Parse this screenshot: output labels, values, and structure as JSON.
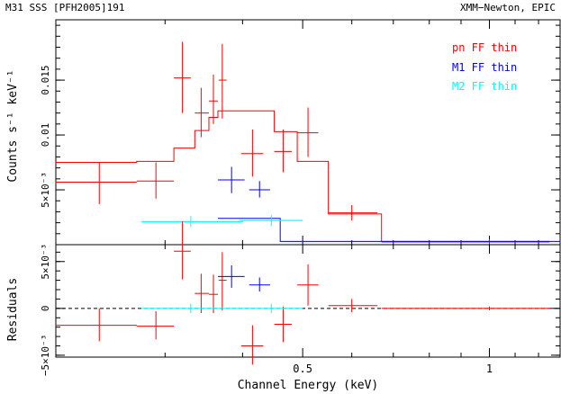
{
  "header": {
    "left": "M31 SSS [PFH2005]191",
    "right": "XMM−Newton, EPIC"
  },
  "colors": {
    "pn": "#ff0000",
    "m1": "#0000ff",
    "m2": "#00ffff",
    "axes": "#000000"
  },
  "chart_data": [
    {
      "type": "scatter",
      "panel": "spectrum",
      "ylabel": "Counts s⁻¹ keV⁻¹",
      "xscale": "log",
      "xlim": [
        0.2,
        1.3
      ],
      "ylim": [
        0,
        0.0205
      ],
      "yticks": [
        {
          "value": 0.005,
          "label": "5×10⁻³"
        },
        {
          "value": 0.01,
          "label": "0.01"
        },
        {
          "value": 0.015,
          "label": "0.015"
        }
      ],
      "legend": [
        "pn FF thin",
        "M1 FF thin",
        "M2 FF thin"
      ],
      "legend_position": "top-right",
      "series": [
        {
          "name": "pn FF thin",
          "color": "#ff0000",
          "points": [
            {
              "x": 0.235,
              "xlo": 0.2,
              "xhi": 0.27,
              "y": 0.0057,
              "ylo": 0.0037,
              "yhi": 0.0075
            },
            {
              "x": 0.29,
              "xlo": 0.27,
              "xhi": 0.31,
              "y": 0.0058,
              "ylo": 0.0042,
              "yhi": 0.0075
            },
            {
              "x": 0.32,
              "xlo": 0.31,
              "xhi": 0.33,
              "y": 0.0152,
              "ylo": 0.012,
              "yhi": 0.0185
            },
            {
              "x": 0.343,
              "xlo": 0.335,
              "xhi": 0.353,
              "y": 0.012,
              "ylo": 0.0098,
              "yhi": 0.0143
            },
            {
              "x": 0.359,
              "xlo": 0.353,
              "xhi": 0.365,
              "y": 0.0131,
              "ylo": 0.011,
              "yhi": 0.0155
            },
            {
              "x": 0.371,
              "xlo": 0.366,
              "xhi": 0.377,
              "y": 0.015,
              "ylo": 0.0115,
              "yhi": 0.0183
            },
            {
              "x": 0.415,
              "xlo": 0.398,
              "xhi": 0.432,
              "y": 0.0083,
              "ylo": 0.0062,
              "yhi": 0.0105
            },
            {
              "x": 0.465,
              "xlo": 0.45,
              "xhi": 0.48,
              "y": 0.0085,
              "ylo": 0.0066,
              "yhi": 0.0105
            },
            {
              "x": 0.51,
              "xlo": 0.49,
              "xhi": 0.53,
              "y": 0.0102,
              "ylo": 0.008,
              "yhi": 0.0125
            },
            {
              "x": 0.6,
              "xlo": 0.55,
              "xhi": 0.66,
              "y": 0.0029,
              "ylo": 0.0022,
              "yhi": 0.0036
            },
            {
              "x": 1.0,
              "xlo": 0.67,
              "xhi": 1.25,
              "y": 0.00025,
              "ylo": 0.0,
              "yhi": 0.0005
            }
          ],
          "model": [
            {
              "xlo": 0.2,
              "xhi": 0.27,
              "y": 0.0075
            },
            {
              "xlo": 0.27,
              "xhi": 0.31,
              "y": 0.0076
            },
            {
              "xlo": 0.31,
              "xhi": 0.335,
              "y": 0.0088
            },
            {
              "xlo": 0.335,
              "xhi": 0.353,
              "y": 0.0104
            },
            {
              "xlo": 0.353,
              "xhi": 0.365,
              "y": 0.0116
            },
            {
              "xlo": 0.365,
              "xhi": 0.377,
              "y": 0.0122
            },
            {
              "xlo": 0.377,
              "xhi": 0.45,
              "y": 0.0122
            },
            {
              "xlo": 0.45,
              "xhi": 0.49,
              "y": 0.0103
            },
            {
              "xlo": 0.49,
              "xhi": 0.55,
              "y": 0.0076
            },
            {
              "xlo": 0.55,
              "xhi": 0.67,
              "y": 0.0028
            },
            {
              "xlo": 0.67,
              "xhi": 1.25,
              "y": 0.0003
            }
          ]
        },
        {
          "name": "M1 FF thin",
          "color": "#0000ff",
          "points": [
            {
              "x": 0.384,
              "xlo": 0.365,
              "xhi": 0.403,
              "y": 0.0059,
              "ylo": 0.0047,
              "yhi": 0.0071
            },
            {
              "x": 0.426,
              "xlo": 0.41,
              "xhi": 0.443,
              "y": 0.005,
              "ylo": 0.0043,
              "yhi": 0.0058
            }
          ],
          "model": [
            {
              "xlo": 0.365,
              "xhi": 0.46,
              "y": 0.0024
            },
            {
              "xlo": 0.46,
              "xhi": 1.3,
              "y": 0.0003
            }
          ]
        },
        {
          "name": "M2 FF thin",
          "color": "#00ffff",
          "points": [
            {
              "x": 0.33,
              "xlo": 0.275,
              "xhi": 0.395,
              "y": 0.0021,
              "ylo": 0.0016,
              "yhi": 0.0026
            },
            {
              "x": 0.445,
              "xlo": 0.395,
              "xhi": 0.5,
              "y": 0.0022,
              "ylo": 0.0017,
              "yhi": 0.0027
            }
          ],
          "model": [
            {
              "xlo": 0.275,
              "xhi": 0.4,
              "y": 0.0021
            },
            {
              "xlo": 0.4,
              "xhi": 0.5,
              "y": 0.0022
            }
          ]
        }
      ]
    },
    {
      "type": "scatter",
      "panel": "residuals",
      "ylabel": "Residuals",
      "xlabel": "Channel Energy (keV)",
      "xscale": "log",
      "xlim": [
        0.2,
        1.3
      ],
      "ylim": [
        -0.0052,
        0.0068
      ],
      "xticks": [
        {
          "value": 0.5,
          "label": "0.5"
        },
        {
          "value": 1,
          "label": "1"
        }
      ],
      "yticks": [
        {
          "value": -0.005,
          "label": "−5×10⁻³"
        },
        {
          "value": 0,
          "label": "0"
        },
        {
          "value": 0.005,
          "label": "5×10⁻³"
        }
      ],
      "zero_line": "dashed",
      "series": [
        {
          "name": "pn FF thin",
          "color": "#ff0000",
          "points": [
            {
              "x": 0.235,
              "xlo": 0.2,
              "xhi": 0.27,
              "y": -0.0018,
              "ylo": -0.0035,
              "yhi": 0.0
            },
            {
              "x": 0.29,
              "xlo": 0.27,
              "xhi": 0.31,
              "y": -0.0019,
              "ylo": -0.0033,
              "yhi": -0.0003
            },
            {
              "x": 0.32,
              "xlo": 0.31,
              "xhi": 0.33,
              "y": 0.0061,
              "ylo": 0.0031,
              "yhi": 0.0093
            },
            {
              "x": 0.343,
              "xlo": 0.335,
              "xhi": 0.353,
              "y": 0.0016,
              "ylo": -0.0005,
              "yhi": 0.0037
            },
            {
              "x": 0.359,
              "xlo": 0.353,
              "xhi": 0.365,
              "y": 0.0015,
              "ylo": -0.0005,
              "yhi": 0.0036
            },
            {
              "x": 0.371,
              "xlo": 0.366,
              "xhi": 0.377,
              "y": 0.003,
              "ylo": -0.0002,
              "yhi": 0.006
            },
            {
              "x": 0.415,
              "xlo": 0.398,
              "xhi": 0.432,
              "y": -0.004,
              "ylo": -0.006,
              "yhi": -0.0018
            },
            {
              "x": 0.465,
              "xlo": 0.45,
              "xhi": 0.48,
              "y": -0.0017,
              "ylo": -0.0036,
              "yhi": 0.0002
            },
            {
              "x": 0.51,
              "xlo": 0.49,
              "xhi": 0.53,
              "y": 0.0025,
              "ylo": 0.0003,
              "yhi": 0.0047
            },
            {
              "x": 0.6,
              "xlo": 0.55,
              "xhi": 0.66,
              "y": 0.0003,
              "ylo": -0.0004,
              "yhi": 0.001
            },
            {
              "x": 1.0,
              "xlo": 0.67,
              "xhi": 1.25,
              "y": 0.0,
              "ylo": -0.0002,
              "yhi": 0.0002
            }
          ]
        },
        {
          "name": "M1 FF thin",
          "color": "#0000ff",
          "points": [
            {
              "x": 0.384,
              "xlo": 0.365,
              "xhi": 0.403,
              "y": 0.0034,
              "ylo": 0.0022,
              "yhi": 0.0046
            },
            {
              "x": 0.426,
              "xlo": 0.41,
              "xhi": 0.443,
              "y": 0.0025,
              "ylo": 0.0018,
              "yhi": 0.0033
            }
          ]
        },
        {
          "name": "M2 FF thin",
          "color": "#00ffff",
          "points": [
            {
              "x": 0.33,
              "xlo": 0.275,
              "xhi": 0.395,
              "y": 0.0,
              "ylo": -0.0005,
              "yhi": 0.0005
            },
            {
              "x": 0.445,
              "xlo": 0.395,
              "xhi": 0.5,
              "y": 0.0,
              "ylo": -0.0005,
              "yhi": 0.0005
            }
          ]
        }
      ]
    }
  ]
}
